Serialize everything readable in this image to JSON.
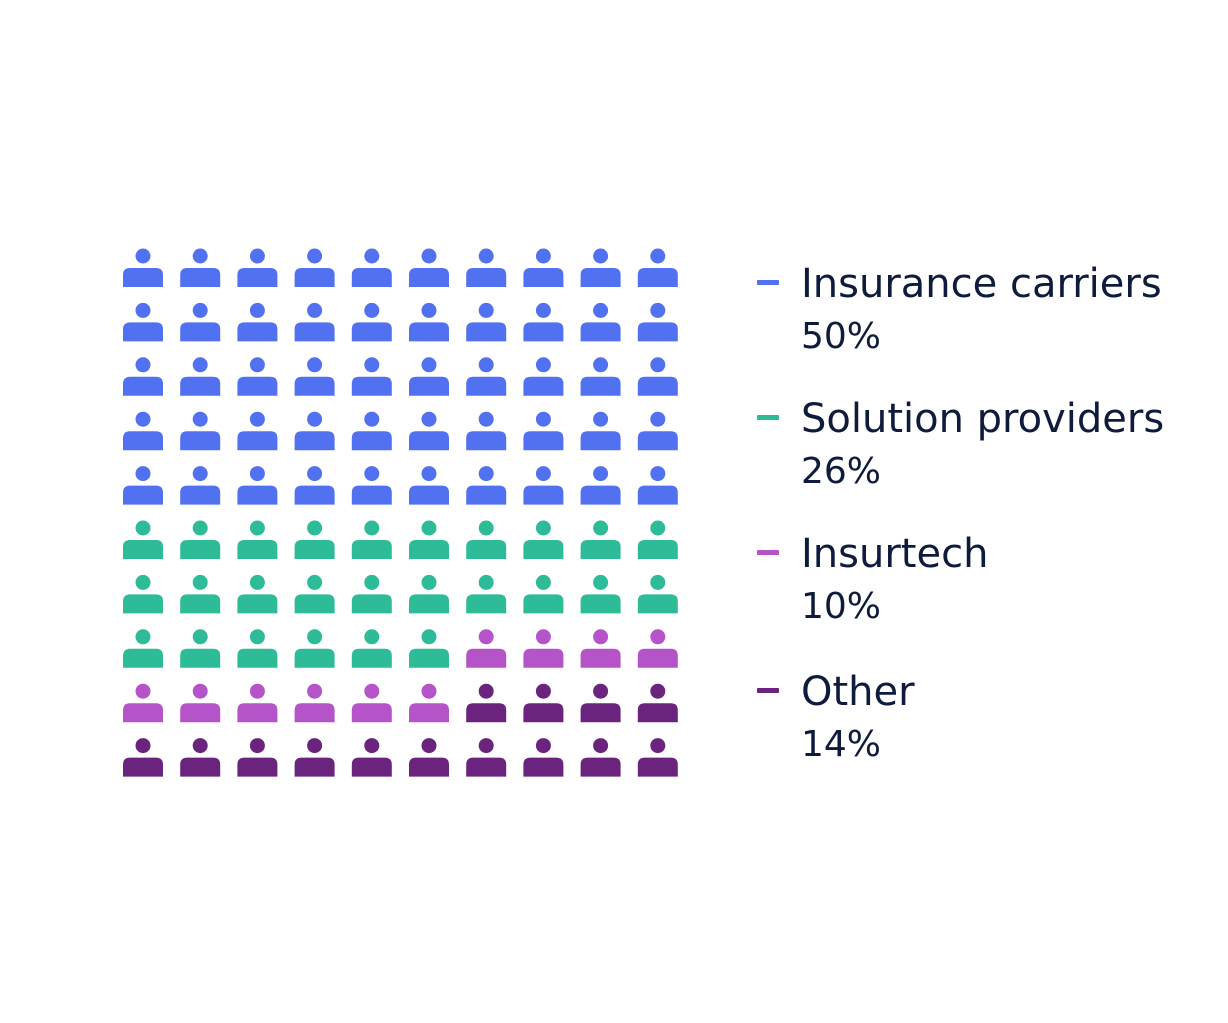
{
  "chart_data": {
    "type": "pictograph",
    "total_icons": 100,
    "grid": {
      "rows": 10,
      "columns": 10
    },
    "fill_order": "row-major",
    "icon": "person-icon",
    "series": [
      {
        "name": "Insurance carriers",
        "value": 50,
        "label": "50%",
        "color": "#5271f0"
      },
      {
        "name": "Solution providers",
        "value": 26,
        "label": "26%",
        "color": "#2ebb97"
      },
      {
        "name": "Insurtech",
        "value": 10,
        "label": "10%",
        "color": "#b553c8"
      },
      {
        "name": "Other",
        "value": 14,
        "label": "14%",
        "color": "#6b247e"
      }
    ],
    "legend_position": "right"
  }
}
